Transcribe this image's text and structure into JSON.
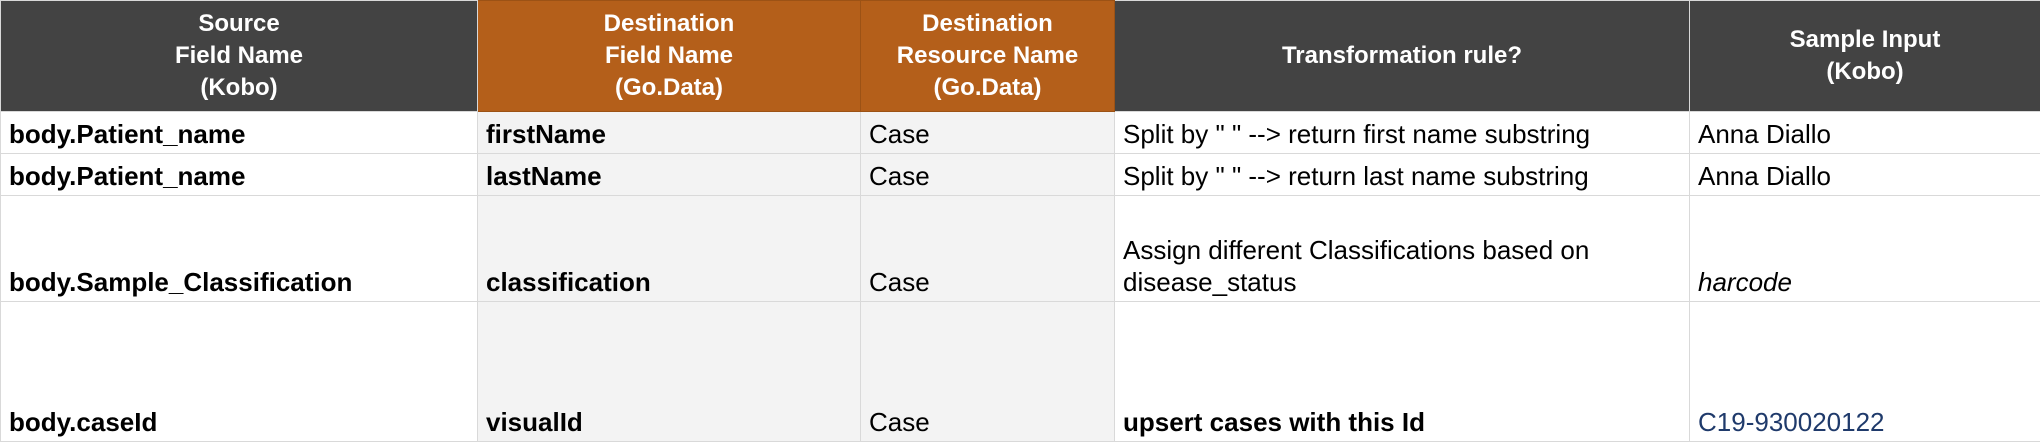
{
  "headers": [
    "Source\nField Name\n(Kobo)",
    "Destination\nField Name\n(Go.Data)",
    "Destination\nResource Name\n(Go.Data)",
    "Transformation rule?",
    "Sample Input\n(Kobo)"
  ],
  "colors": {
    "header_dark": "#434343",
    "header_orange": "#b45f1a",
    "dest_cell_bg": "#f3f3f3",
    "link_text": "#1f3a6b"
  },
  "rows": [
    {
      "source": "body.Patient_name",
      "dest_field": "firstName",
      "dest_resource": "Case",
      "rule": "Split by \" \" --> return first name substring",
      "sample": "Anna Diallo"
    },
    {
      "source": "body.Patient_name",
      "dest_field": "lastName",
      "dest_resource": "Case",
      "rule": "Split by \" \" --> return last name substring",
      "sample": "Anna Diallo"
    },
    {
      "source": "body.Sample_Classification",
      "dest_field": "classification",
      "dest_resource": "Case",
      "rule": "Assign different Classifications based on\ndisease_status",
      "sample": "harcode"
    },
    {
      "source": "body.caseId",
      "dest_field": "visualId",
      "dest_resource": "Case",
      "rule": "upsert cases with this Id",
      "sample": "C19-930020122"
    }
  ]
}
